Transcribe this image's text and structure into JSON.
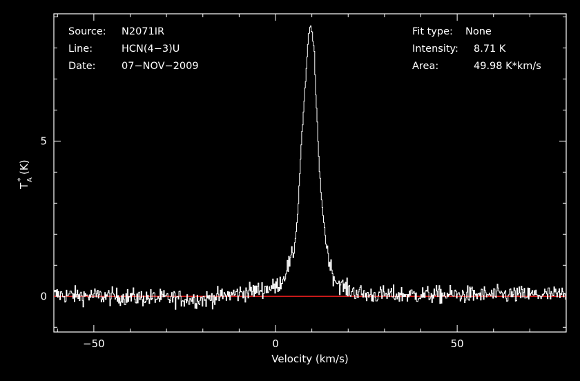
{
  "chart_data": {
    "type": "line",
    "xlabel": "Velocity (km/s)",
    "ylabel_main": "T",
    "ylabel_sub": "A",
    "ylabel_sup": "*",
    "ylabel_unit": "(K)",
    "xlim": [
      -61,
      80
    ],
    "ylim": [
      -1.15,
      9.1
    ],
    "x_ticks": [
      -50,
      0,
      50
    ],
    "x_tick_labels": [
      "−50",
      "0",
      "50"
    ],
    "y_ticks": [
      0,
      5
    ],
    "y_tick_labels": [
      "0",
      "5"
    ],
    "grid": false,
    "baseline": 0,
    "colors": {
      "background": "#000000",
      "axes": "#ffffff",
      "spectrum": "#ffffff",
      "baseline": "#ff2020"
    },
    "noise_rms_K": 0.2,
    "series": [
      {
        "values_description_points": [
          [
            -61,
            0.05
          ],
          [
            -20,
            -0.1
          ],
          [
            0,
            0.3
          ],
          [
            2,
            0.55
          ],
          [
            3,
            0.9
          ],
          [
            4,
            1.1
          ],
          [
            5,
            1.5
          ],
          [
            6,
            2.6
          ],
          [
            7,
            4.9
          ],
          [
            8,
            6.6
          ],
          [
            9,
            8.4
          ],
          [
            9.6,
            8.71
          ],
          [
            10.5,
            8.1
          ],
          [
            11,
            6.5
          ],
          [
            12,
            4.0
          ],
          [
            13,
            2.6
          ],
          [
            14,
            1.6
          ],
          [
            15,
            1.0
          ],
          [
            16,
            0.6
          ],
          [
            17,
            0.45
          ],
          [
            18,
            0.35
          ],
          [
            20,
            0.2
          ],
          [
            25,
            0.05
          ],
          [
            80,
            0.05
          ]
        ]
      }
    ],
    "info_left": [
      {
        "key": "Source:",
        "value": "N2071IR"
      },
      {
        "key": "Line:",
        "value": "HCN(4−3)U"
      },
      {
        "key": "Date:",
        "value": "07−NOV−2009"
      }
    ],
    "info_right": [
      {
        "key": "Fit type:",
        "value": "None"
      },
      {
        "key": "Intensity:",
        "value": "8.71 K"
      },
      {
        "key": "Area:",
        "value": "49.98 K*km/s"
      }
    ]
  }
}
